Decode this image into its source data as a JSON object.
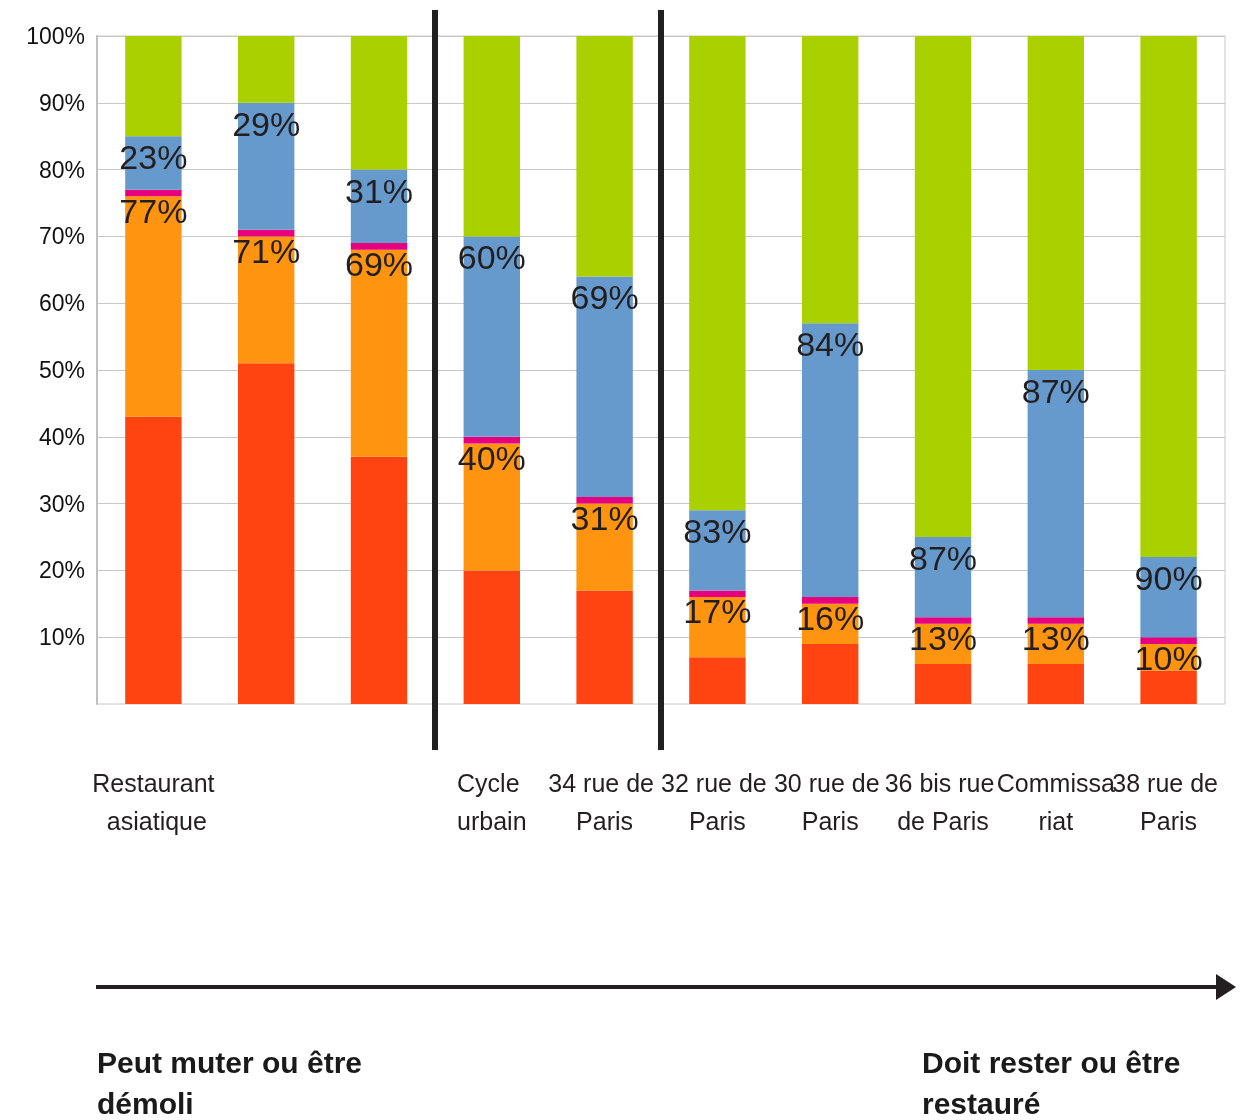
{
  "chart_data": {
    "type": "bar",
    "stacked": true,
    "categories": [
      "Restaurant asiatique",
      null,
      null,
      "Cycle urbain",
      "34 rue de Paris",
      "32 rue de Paris",
      "30 rue de Paris",
      "36 bis rue de Paris",
      "Commissariat",
      "38 rue de Paris"
    ],
    "series": [
      {
        "color": "#ff4411",
        "values": [
          43,
          51,
          37,
          20,
          17,
          7,
          9,
          6,
          6,
          5
        ]
      },
      {
        "color": "#ff9410",
        "values": [
          33,
          19,
          31,
          19,
          13,
          9,
          6,
          6,
          6,
          4
        ]
      },
      {
        "color": "#e6007e",
        "values": [
          1,
          1,
          1,
          1,
          1,
          1,
          1,
          1,
          1,
          1
        ]
      },
      {
        "color": "#6699cc",
        "values": [
          8,
          19,
          11,
          30,
          33,
          12,
          41,
          12,
          37,
          12
        ]
      },
      {
        "color": "#aad000",
        "values": [
          15,
          10,
          20,
          30,
          36,
          71,
          43,
          75,
          50,
          78
        ]
      }
    ],
    "ylim": [
      0,
      100
    ],
    "yticks": [
      {
        "value": 10,
        "label": "10%"
      },
      {
        "value": 20,
        "label": "20%"
      },
      {
        "value": 30,
        "label": "30%"
      },
      {
        "value": 40,
        "label": "40%"
      },
      {
        "value": 50,
        "label": "50%"
      },
      {
        "value": 60,
        "label": "60%"
      },
      {
        "value": 70,
        "label": "70%"
      },
      {
        "value": 80,
        "label": "80%"
      },
      {
        "value": 90,
        "label": "90%"
      },
      {
        "value": 100,
        "label": "100%"
      }
    ],
    "grid": "y",
    "annotations": [
      {
        "text": "23%",
        "x": "Restaurant asiatique",
        "y": 85
      },
      {
        "text": "29%",
        "y": 90
      },
      {
        "text": "31%",
        "y": 80
      },
      {
        "text": "60%",
        "x": "Cycle urbain",
        "y": 70
      },
      {
        "text": "69%",
        "x": "34 rue de Paris",
        "y": 64
      },
      {
        "text": "83%",
        "x": "32 rue de Paris",
        "y": 29
      },
      {
        "text": "84%",
        "x": "30 rue de Paris",
        "y": 57
      },
      {
        "text": "87%",
        "x": "36 bis rue de Paris",
        "y": 25
      },
      {
        "text": "87%",
        "x": "Commissariat",
        "y": 50
      },
      {
        "text": "90%",
        "x": "38 rue de Paris",
        "y": 22
      },
      {
        "text": "77%",
        "x": "Restaurant asiatique",
        "y": 77
      },
      {
        "text": "71%",
        "y": 71
      },
      {
        "text": "69%",
        "y": 69
      },
      {
        "text": "40%",
        "x": "Cycle urbain",
        "y": 40
      },
      {
        "text": "31%",
        "x": "34 rue de Paris",
        "y": 31
      },
      {
        "text": "17%",
        "x": "32 rue de Paris",
        "y": 17
      },
      {
        "text": "16%",
        "x": "30 rue de Paris",
        "y": 16
      },
      {
        "text": "13%",
        "x": "36 bis rue de Paris",
        "y": 13
      },
      {
        "text": "13%",
        "x": "Commissariat",
        "y": 13
      },
      {
        "text": "10%",
        "x": "38 rue de Paris",
        "y": 10
      },
      "Peut muter ou être démoli",
      "Doit rester ou être restauré"
    ]
  }
}
